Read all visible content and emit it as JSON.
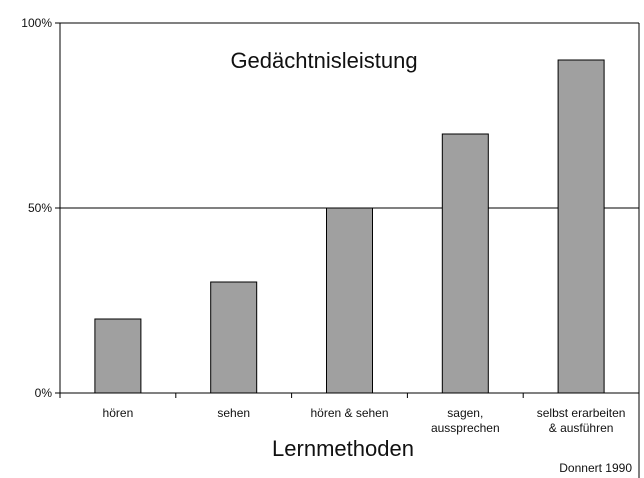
{
  "chart_data": {
    "type": "bar",
    "title": "Gedächtnisleistung",
    "xlabel": "Lernmethoden",
    "ylabel": "",
    "source": "Donnert 1990",
    "categories": [
      [
        "hören"
      ],
      [
        "sehen"
      ],
      [
        "hören & sehen"
      ],
      [
        "sagen,",
        "aussprechen"
      ],
      [
        "selbst erarbeiten",
        "& ausführen"
      ]
    ],
    "values": [
      20,
      30,
      50,
      70,
      90
    ],
    "ylim": [
      0,
      100
    ],
    "yticks": [
      "0%",
      "50%",
      "100%"
    ],
    "ytick_values": [
      0,
      50,
      100
    ],
    "gridlines": [
      50
    ],
    "bar_color": "#a0a0a0",
    "bar_edge_color": "#000000"
  }
}
